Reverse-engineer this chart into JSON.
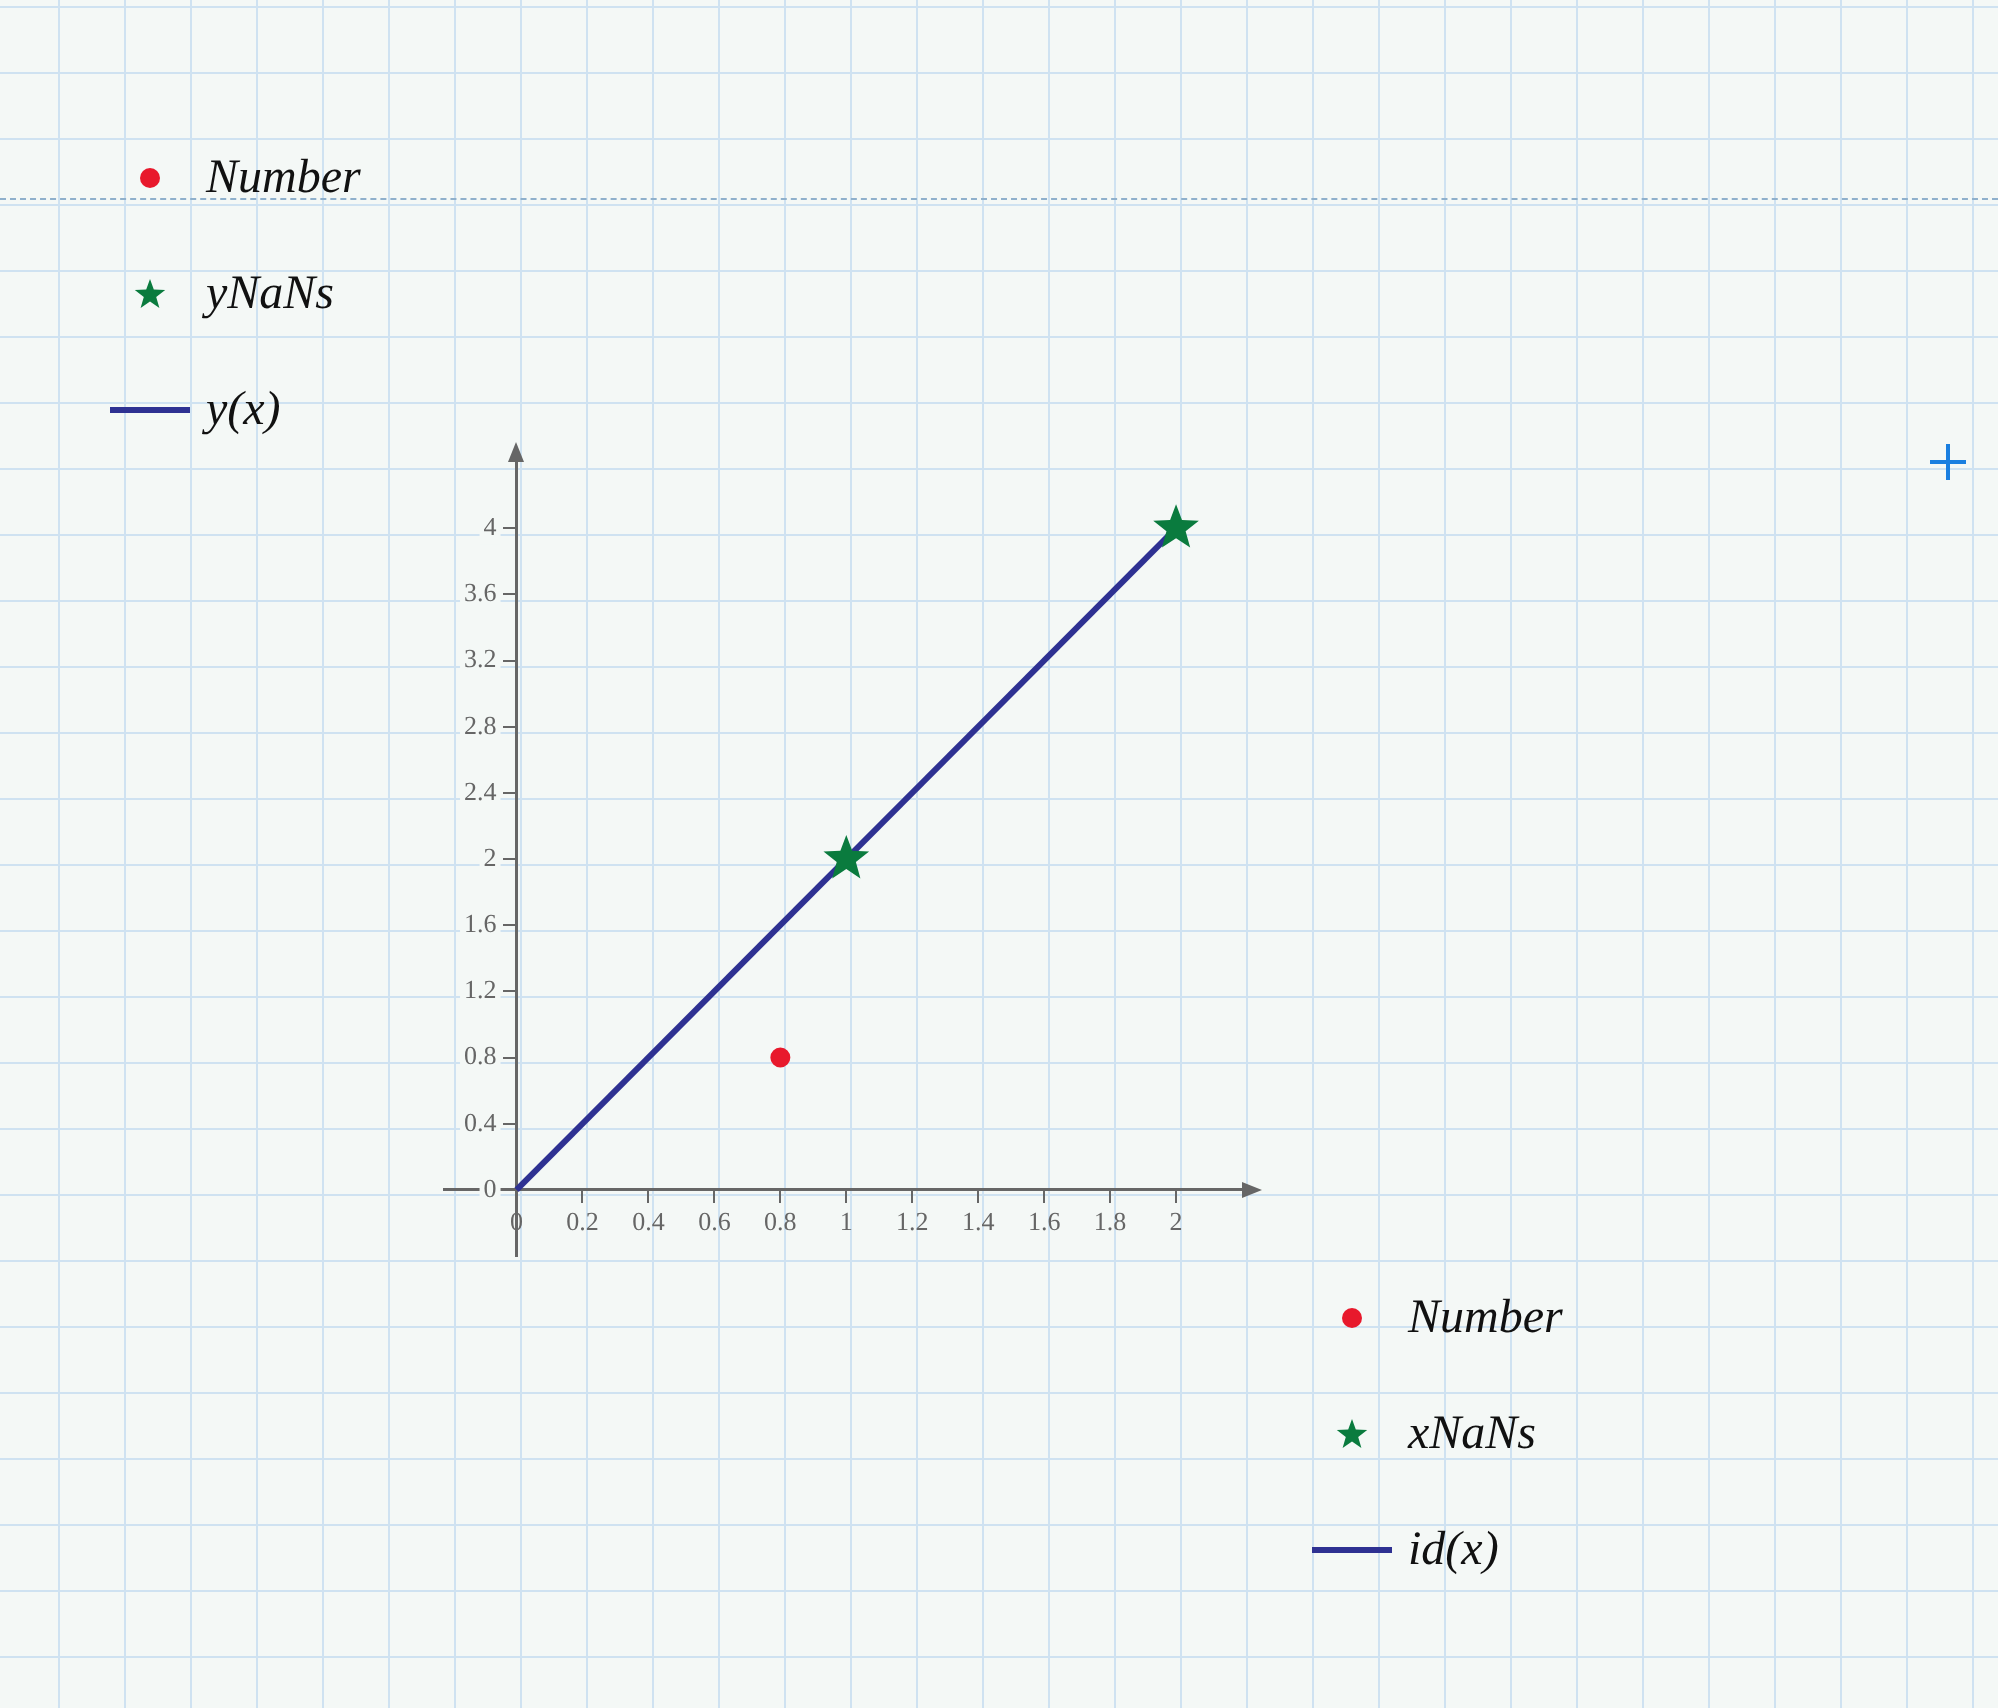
{
  "chart_data": {
    "type": "scatter",
    "series": [
      {
        "name": "Number",
        "type": "scatter",
        "marker": "circle",
        "color": "#e8192c",
        "x": [
          0.8
        ],
        "values": [
          0.8
        ]
      },
      {
        "name": "yNaNs",
        "type": "scatter",
        "marker": "star",
        "color": "#0a7b3e",
        "x": [
          1,
          2
        ],
        "values": [
          2,
          4
        ]
      },
      {
        "name": "y(x)",
        "type": "line",
        "marker": "none",
        "line_style": "solid",
        "color": "#2e3192",
        "x": [
          0,
          2
        ],
        "values": [
          0,
          4
        ]
      }
    ],
    "annotations": [
      "Number",
      "xNaNs",
      "id(x)"
    ],
    "xlim": [
      -0.22,
      2.2
    ],
    "ylim": [
      -0.4,
      4.4
    ],
    "xticks": [
      0,
      0.2,
      0.4,
      0.6,
      0.8,
      1,
      1.2,
      1.4,
      1.6,
      1.8,
      2
    ],
    "yticks": [
      0,
      0.4,
      0.8,
      1.2,
      1.6,
      2,
      2.4,
      2.8,
      3.2,
      3.6,
      4
    ],
    "grid": false,
    "legend": "top left"
  }
}
